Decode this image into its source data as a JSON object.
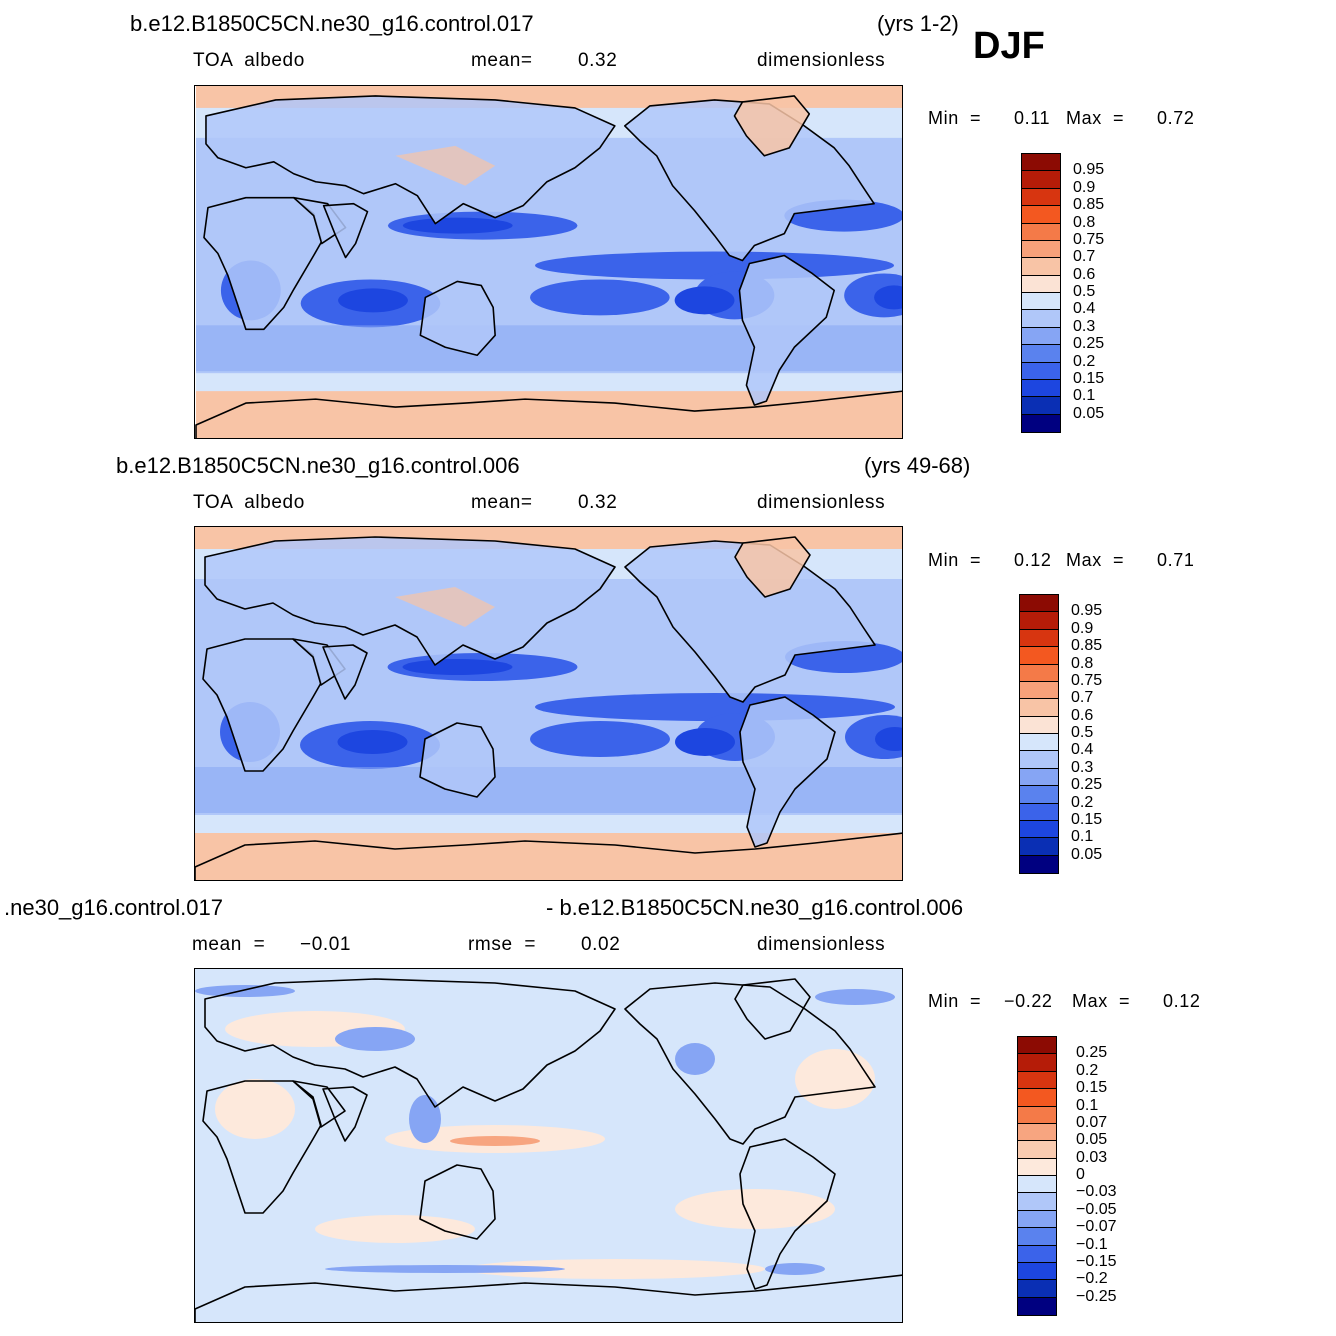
{
  "season": "DJF",
  "colors": {
    "abs": [
      "#000080",
      "#0a2fb4",
      "#1d46e0",
      "#3b63ea",
      "#5a82ee",
      "#86a5f4",
      "#b0c7f9",
      "#d6e6fb",
      "#fbe3d5",
      "#f8c4a6",
      "#f7a17a",
      "#f47a48",
      "#f35820",
      "#d73510",
      "#b51c08",
      "#8c0b03"
    ],
    "diff": [
      "#000080",
      "#0a2fb4",
      "#1d46e0",
      "#3b63ea",
      "#5a82ee",
      "#86a5f4",
      "#b0c7f9",
      "#d6e6fb",
      "#fde9dc",
      "#f9cbb0",
      "#f7a580",
      "#f47a48",
      "#f35820",
      "#d73510",
      "#b51c08",
      "#8c0b03"
    ]
  },
  "panels": [
    {
      "case_label": "b.e12.B1850C5CN.ne30_g16.control.017",
      "years": "(yrs 1-2)",
      "variable": "TOA  albedo",
      "mean_label": "mean=",
      "mean_value": "0.32",
      "units": "dimensionless",
      "min_label": "Min  =",
      "min_value": "0.11",
      "max_label": "Max  =",
      "max_value": "0.72",
      "levels": [
        "0.95",
        "0.9",
        "0.85",
        "0.8",
        "0.75",
        "0.7",
        "0.6",
        "0.5",
        "0.4",
        "0.3",
        "0.25",
        "0.2",
        "0.15",
        "0.1",
        "0.05"
      ]
    },
    {
      "case_label": "b.e12.B1850C5CN.ne30_g16.control.006",
      "years": "(yrs 49-68)",
      "variable": "TOA  albedo",
      "mean_label": "mean=",
      "mean_value": "0.32",
      "units": "dimensionless",
      "min_label": "Min  =",
      "min_value": "0.12",
      "max_label": "Max  =",
      "max_value": "0.71",
      "levels": [
        "0.95",
        "0.9",
        "0.85",
        "0.8",
        "0.75",
        "0.7",
        "0.6",
        "0.5",
        "0.4",
        "0.3",
        "0.25",
        "0.2",
        "0.15",
        "0.1",
        "0.05"
      ]
    },
    {
      "case_label": ".ne30_g16.control.017",
      "case_label_2": "- b.e12.B1850C5CN.ne30_g16.control.006",
      "mean_label": "mean  =",
      "mean_value": "−0.01",
      "rmse_label": "rmse  =",
      "rmse_value": "0.02",
      "units": "dimensionless",
      "min_label": "Min  =",
      "min_value": "−0.22",
      "max_label": "Max  =",
      "max_value": "0.12",
      "levels": [
        "0.25",
        "0.2",
        "0.15",
        "0.1",
        "0.07",
        "0.05",
        "0.03",
        "0",
        "−0.03",
        "−0.05",
        "−0.07",
        "−0.1",
        "−0.15",
        "−0.2",
        "−0.25"
      ]
    }
  ]
}
